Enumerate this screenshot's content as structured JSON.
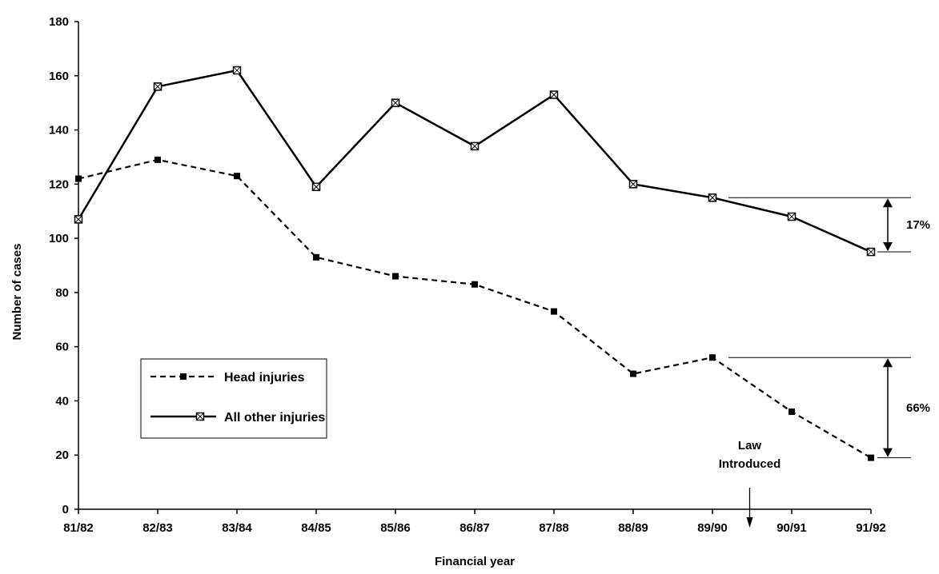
{
  "chart_data": {
    "type": "line",
    "title": "",
    "xlabel": "Financial year",
    "ylabel": "Number of cases",
    "categories": [
      "81/82",
      "82/83",
      "83/84",
      "84/85",
      "85/86",
      "86/87",
      "87/88",
      "88/89",
      "89/90",
      "90/91",
      "91/92"
    ],
    "ylim": [
      0,
      180
    ],
    "yticks": [
      "0",
      "20",
      "40",
      "60",
      "80",
      "100",
      "120",
      "140",
      "160",
      "180"
    ],
    "grid": false,
    "legend_position": "bottom-left",
    "series": [
      {
        "name": "Head injuries",
        "line_style": "dashed",
        "marker": "filled-square",
        "values": [
          122,
          129,
          123,
          93,
          86,
          83,
          73,
          50,
          56,
          36,
          19
        ]
      },
      {
        "name": "All other injuries",
        "line_style": "solid",
        "marker": "crossed-square",
        "values": [
          107,
          156,
          162,
          119,
          150,
          134,
          153,
          120,
          115,
          108,
          95
        ]
      }
    ],
    "annotations": {
      "law": {
        "text_line1": "Law",
        "text_line2": "Introduced",
        "between": [
          "89/90",
          "90/91"
        ]
      },
      "other_reduction": {
        "text": "17%",
        "from": 115,
        "to": 95
      },
      "head_reduction": {
        "text": "66%",
        "from": 56,
        "to": 19
      }
    }
  }
}
